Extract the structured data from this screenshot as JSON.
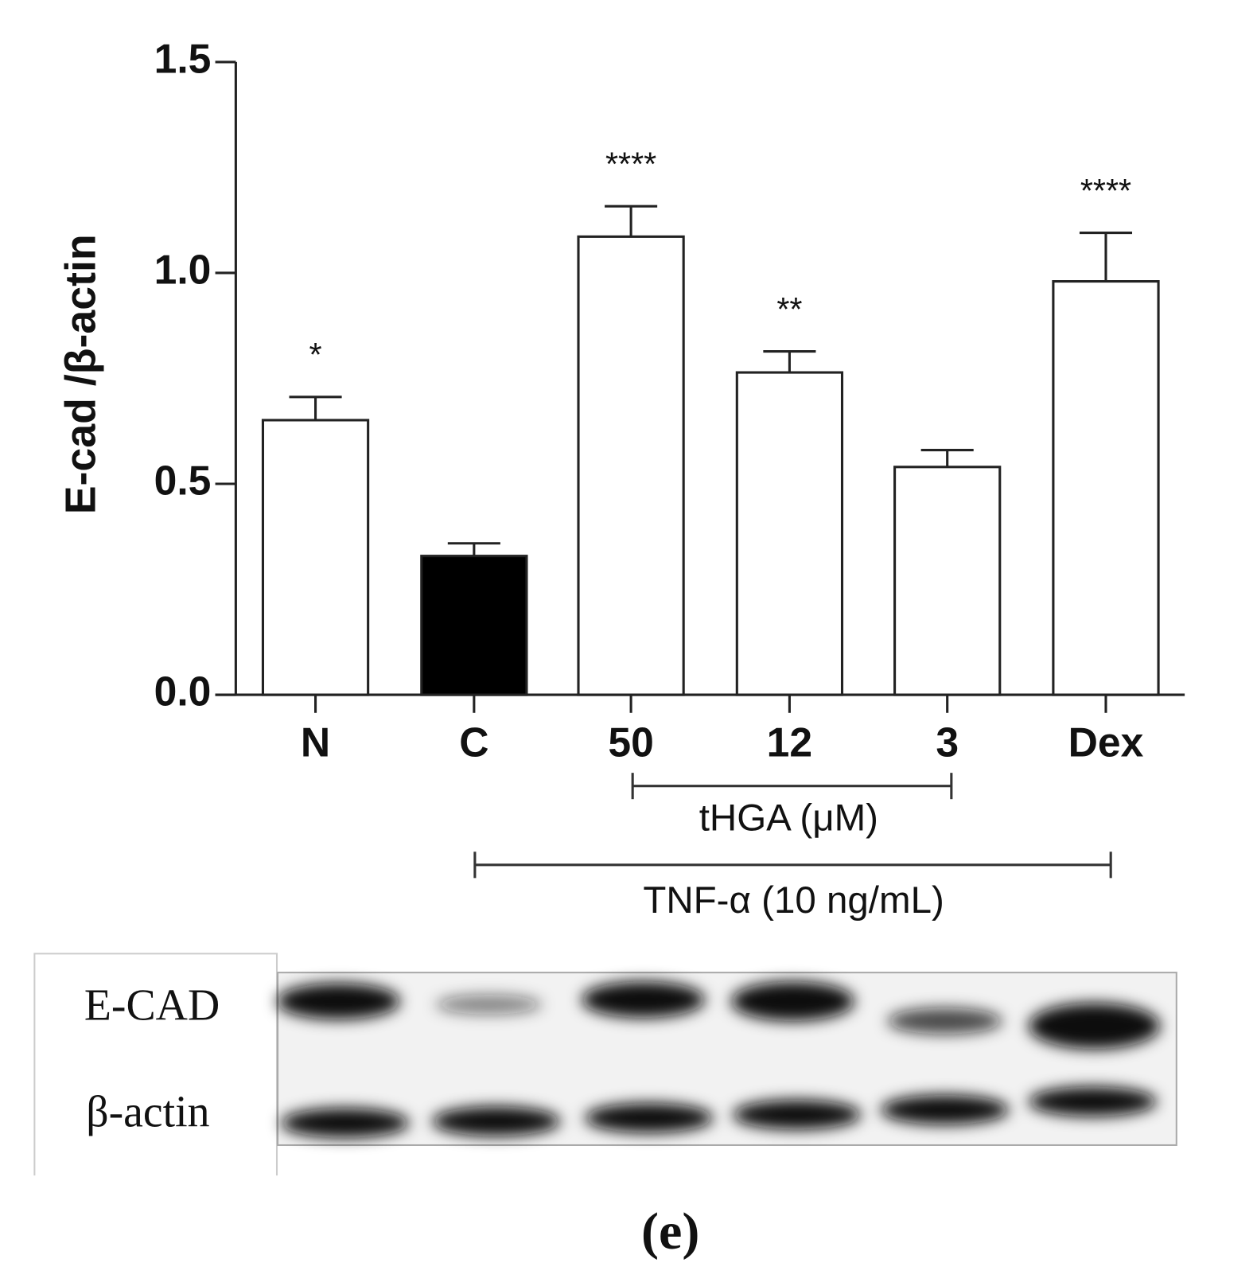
{
  "chart_data": {
    "type": "bar",
    "y_label": "E-cad /β-actin",
    "categories": [
      "N",
      "C",
      "50",
      "12",
      "3",
      "Dex"
    ],
    "values": [
      0.651,
      0.329,
      1.086,
      0.764,
      0.54,
      0.98
    ],
    "errors": [
      0.055,
      0.03,
      0.072,
      0.05,
      0.04,
      0.115
    ],
    "colors": [
      "#ffffff",
      "#000000",
      "#ffffff",
      "#ffffff",
      "#ffffff",
      "#ffffff"
    ],
    "annotations": [
      "*",
      null,
      "****",
      "**",
      null,
      "****"
    ],
    "group_labels": [
      "tHGA (μM)",
      "TNF-α (10 ng/mL)"
    ],
    "ylim": [
      0,
      1.5
    ],
    "yticks": [
      {
        "value": 0,
        "label": "0.0"
      },
      {
        "value": 0.5,
        "label": "0.5"
      },
      {
        "value": 1,
        "label": "1.0"
      },
      {
        "value": 1.5,
        "label": "1.5"
      }
    ]
  },
  "blot": {
    "rows": [
      "E-CAD",
      "β-actin"
    ]
  },
  "panel_label": "(e)"
}
